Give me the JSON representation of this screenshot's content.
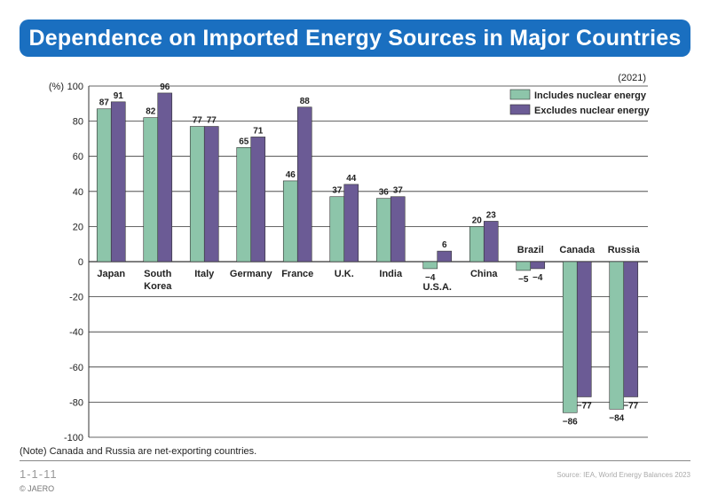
{
  "header": {
    "title": "Dependence on Imported Energy Sources in Major Countries"
  },
  "chart_data": {
    "type": "bar",
    "year_label": "(2021)",
    "ylabel": "(%)",
    "ylim": [
      -100,
      100
    ],
    "yticks": [
      100,
      80,
      60,
      40,
      20,
      0,
      -20,
      -40,
      -60,
      -80,
      -100
    ],
    "categories": [
      "Japan",
      "South Korea",
      "Italy",
      "Germany",
      "France",
      "U.K.",
      "India",
      "U.S.A.",
      "China",
      "Brazil",
      "Canada",
      "Russia"
    ],
    "category_lines": [
      [
        "Japan"
      ],
      [
        "South",
        "Korea"
      ],
      [
        "Italy"
      ],
      [
        "Germany"
      ],
      [
        "France"
      ],
      [
        "U.K."
      ],
      [
        "India"
      ],
      [
        "U.S.A."
      ],
      [
        "China"
      ],
      [
        "Brazil"
      ],
      [
        "Canada"
      ],
      [
        "Russia"
      ]
    ],
    "series": [
      {
        "name": "Includes nuclear energy",
        "color": "#8dc5aa",
        "values": [
          87,
          82,
          77,
          65,
          46,
          37,
          36,
          -4,
          20,
          -5,
          -86,
          -84
        ]
      },
      {
        "name": "Excludes nuclear energy",
        "color": "#6b5b95",
        "values": [
          91,
          96,
          77,
          71,
          88,
          44,
          37,
          6,
          23,
          -4,
          -77,
          -77
        ]
      }
    ],
    "legend": "top-right",
    "grid": true
  },
  "note": "(Note) Canada and Russia are net-exporting countries.",
  "figure_id": "1-1-11",
  "copyright": "© JAERO",
  "source": "Source: IEA, World Energy Balances 2023"
}
